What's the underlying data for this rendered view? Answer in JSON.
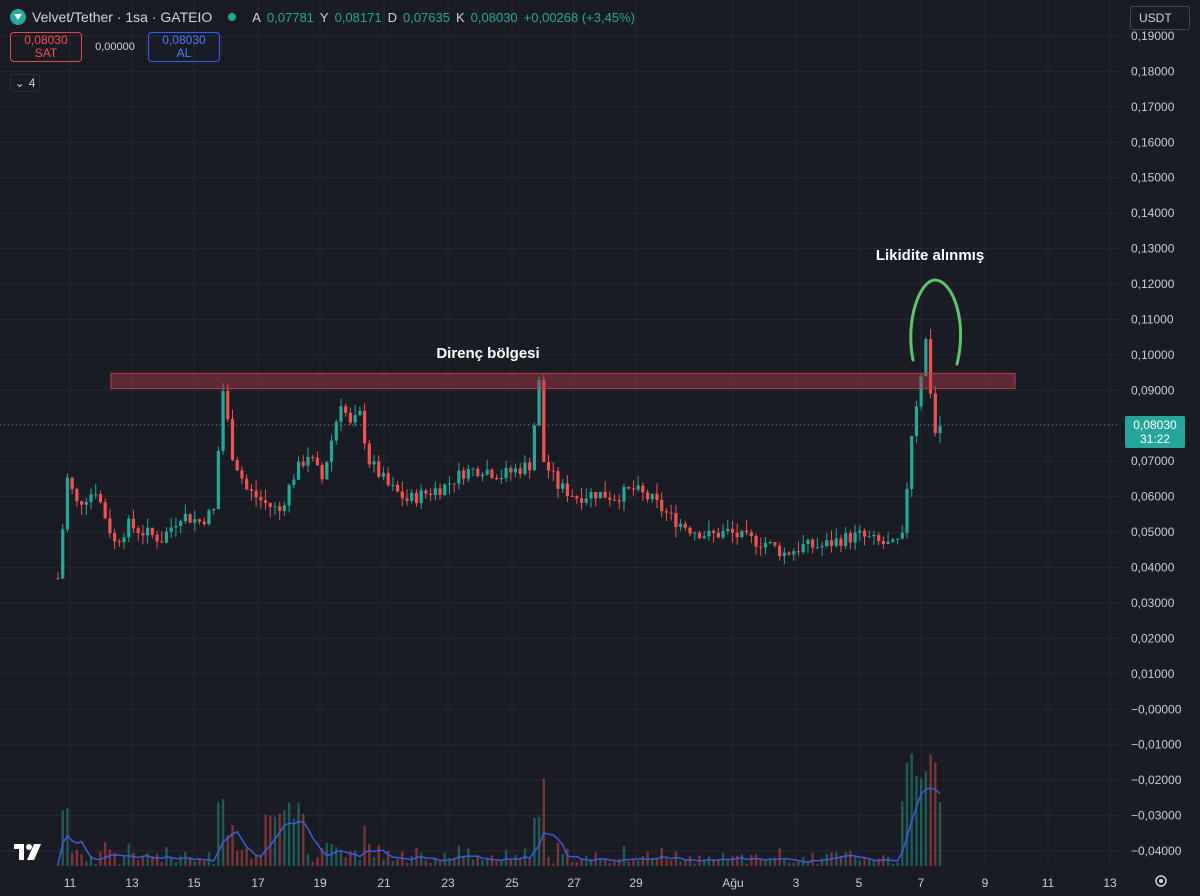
{
  "header": {
    "symbol": "Velvet/Tether · 1sa · GATEIO",
    "ohlc": [
      {
        "k": "A",
        "v": "0,07781"
      },
      {
        "k": "Y",
        "v": "0,08171"
      },
      {
        "k": "D",
        "v": "0,07635"
      },
      {
        "k": "K",
        "v": "0,08030"
      }
    ],
    "change": "+0,00268 (+3,45%)"
  },
  "trade": {
    "sell_price": "0,08030",
    "sell_label": "SAT",
    "spread": "0,00000",
    "buy_price": "0,08030",
    "buy_label": "AL"
  },
  "indicators_collapse": "4",
  "currency": "USDT",
  "last_price": {
    "value": "0,08030",
    "countdown": "31:22"
  },
  "colors": {
    "up": "#26a69a",
    "down": "#ef5350",
    "zone": "#8b3a44",
    "volume_ma": "#3d5bd9",
    "circle": "#5ec46a"
  },
  "icons": {
    "logo": "velvet-logo-icon",
    "tradingview": "tradingview-logo-icon",
    "settings": "gear-icon"
  },
  "chart_data": {
    "type": "candlestick",
    "y_ticks": [
      "0,19000",
      "0,18000",
      "0,17000",
      "0,16000",
      "0,15000",
      "0,14000",
      "0,13000",
      "0,12000",
      "0,11000",
      "0,10000",
      "0,09000",
      "0,08000",
      "0,07000",
      "0,06000",
      "0,05000",
      "0,04000",
      "0,03000",
      "0,02000",
      "0,01000",
      "−0,00000",
      "−0,01000",
      "−0,02000",
      "−0,03000",
      "−0,04000"
    ],
    "ylim": [
      -0.045,
      0.192
    ],
    "x_ticks": [
      "11",
      "13",
      "15",
      "17",
      "19",
      "21",
      "23",
      "25",
      "27",
      "29",
      "Ağu",
      "3",
      "5",
      "7",
      "9",
      "11",
      "13"
    ],
    "price_path": [
      [
        0,
        0.037
      ],
      [
        2,
        0.065
      ],
      [
        4,
        0.058
      ],
      [
        8,
        0.062
      ],
      [
        12,
        0.047
      ],
      [
        15,
        0.052
      ],
      [
        18,
        0.05
      ],
      [
        22,
        0.048
      ],
      [
        26,
        0.055
      ],
      [
        30,
        0.053
      ],
      [
        33,
        0.056
      ],
      [
        35,
        0.09
      ],
      [
        37,
        0.072
      ],
      [
        40,
        0.062
      ],
      [
        44,
        0.058
      ],
      [
        47,
        0.056
      ],
      [
        50,
        0.066
      ],
      [
        53,
        0.072
      ],
      [
        56,
        0.065
      ],
      [
        58,
        0.076
      ],
      [
        60,
        0.087
      ],
      [
        62,
        0.08
      ],
      [
        64,
        0.083
      ],
      [
        66,
        0.07
      ],
      [
        70,
        0.063
      ],
      [
        74,
        0.059
      ],
      [
        78,
        0.061
      ],
      [
        82,
        0.063
      ],
      [
        86,
        0.067
      ],
      [
        90,
        0.068
      ],
      [
        94,
        0.066
      ],
      [
        98,
        0.068
      ],
      [
        100,
        0.069
      ],
      [
        102,
        0.092
      ],
      [
        103,
        0.07
      ],
      [
        106,
        0.063
      ],
      [
        110,
        0.06
      ],
      [
        114,
        0.061
      ],
      [
        118,
        0.06
      ],
      [
        122,
        0.062
      ],
      [
        126,
        0.059
      ],
      [
        130,
        0.054
      ],
      [
        134,
        0.051
      ],
      [
        138,
        0.049
      ],
      [
        142,
        0.05
      ],
      [
        146,
        0.048
      ],
      [
        150,
        0.047
      ],
      [
        154,
        0.044
      ],
      [
        158,
        0.046
      ],
      [
        162,
        0.046
      ],
      [
        166,
        0.048
      ],
      [
        170,
        0.049
      ],
      [
        174,
        0.047
      ],
      [
        177,
        0.046
      ],
      [
        179,
        0.048
      ],
      [
        181,
        0.078
      ],
      [
        183,
        0.095
      ],
      [
        184,
        0.104
      ],
      [
        185,
        0.09
      ],
      [
        186,
        0.078
      ],
      [
        187,
        0.08
      ]
    ],
    "annotations": [
      {
        "text": "Direnç bölgesi",
        "type": "label"
      },
      {
        "text": "Likidite alınmış",
        "type": "label"
      }
    ],
    "resistance_zone": [
      0.0905,
      0.0948
    ],
    "series": [
      {
        "values": "candles"
      },
      {
        "values": "volume"
      },
      {
        "values": "volume-ma"
      }
    ]
  }
}
